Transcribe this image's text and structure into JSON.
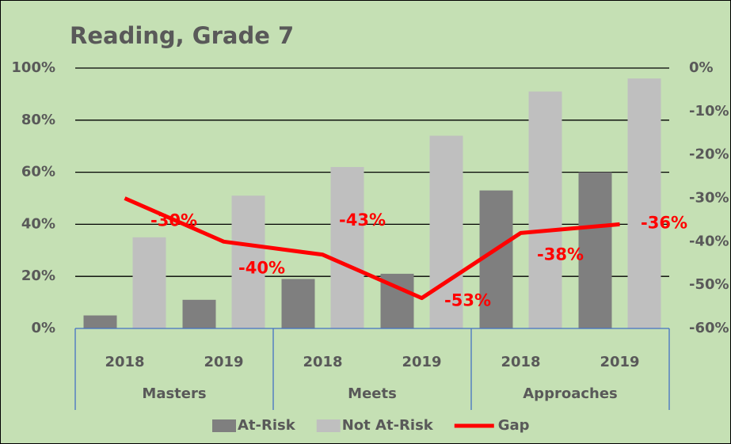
{
  "chart_data": {
    "type": "bar",
    "title": "Reading, Grade 7",
    "categories": [
      "2018",
      "2019",
      "2018",
      "2019",
      "2018",
      "2019"
    ],
    "groups": [
      "Masters",
      "Meets",
      "Approaches"
    ],
    "series": [
      {
        "name": "At-Risk",
        "color": "#7f7f7f",
        "values": [
          5,
          11,
          19,
          21,
          53,
          60
        ]
      },
      {
        "name": "Not At-Risk",
        "color": "#bfbfbf",
        "values": [
          35,
          51,
          62,
          74,
          91,
          96
        ]
      },
      {
        "name": "Gap",
        "type": "line",
        "axis": "y2",
        "color": "#ff0000",
        "values": [
          -30,
          -40,
          -43,
          -53,
          -38,
          -36
        ],
        "value_labels": [
          "-30%",
          "-40%",
          "-43%",
          "-53%",
          "-38%",
          "-36%"
        ]
      }
    ],
    "ylim": [
      0,
      100
    ],
    "yticks": [
      {
        "value": 0,
        "label": "0%"
      },
      {
        "value": 20,
        "label": "20%"
      },
      {
        "value": 40,
        "label": "40%"
      },
      {
        "value": 60,
        "label": "60%"
      },
      {
        "value": 80,
        "label": "80%"
      },
      {
        "value": 100,
        "label": "100%"
      }
    ],
    "y2lim": [
      -60,
      0
    ],
    "y2ticks": [
      {
        "value": -60,
        "label": "-60%"
      },
      {
        "value": -50,
        "label": "-50%"
      },
      {
        "value": -40,
        "label": "-40%"
      },
      {
        "value": -30,
        "label": "-30%"
      },
      {
        "value": -20,
        "label": "-20%"
      },
      {
        "value": -10,
        "label": "-10%"
      },
      {
        "value": 0,
        "label": "0%"
      }
    ],
    "grid": true,
    "legend": "bottom"
  }
}
